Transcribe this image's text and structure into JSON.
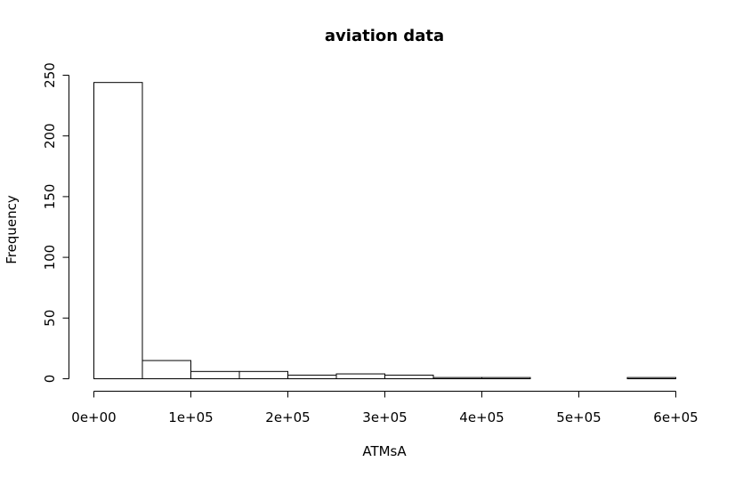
{
  "chart_data": {
    "type": "bar",
    "title": "aviation data",
    "xlabel": "ATMsA",
    "ylabel": "Frequency",
    "bin_edges": [
      0,
      50000,
      100000,
      150000,
      200000,
      250000,
      300000,
      350000,
      400000,
      450000,
      500000,
      550000,
      600000
    ],
    "values": [
      244,
      15,
      6,
      6,
      3,
      4,
      3,
      1,
      1,
      0,
      0,
      1
    ],
    "xlim": [
      0,
      600000
    ],
    "ylim": [
      0,
      250
    ],
    "x_ticks": [
      0,
      100000,
      200000,
      300000,
      400000,
      500000,
      600000
    ],
    "x_tick_labels": [
      "0e+00",
      "1e+05",
      "2e+05",
      "3e+05",
      "4e+05",
      "5e+05",
      "6e+05"
    ],
    "y_ticks": [
      0,
      50,
      100,
      150,
      200,
      250
    ],
    "y_tick_labels": [
      "0",
      "50",
      "100",
      "150",
      "200",
      "250"
    ],
    "grid": false,
    "legend": "none"
  }
}
